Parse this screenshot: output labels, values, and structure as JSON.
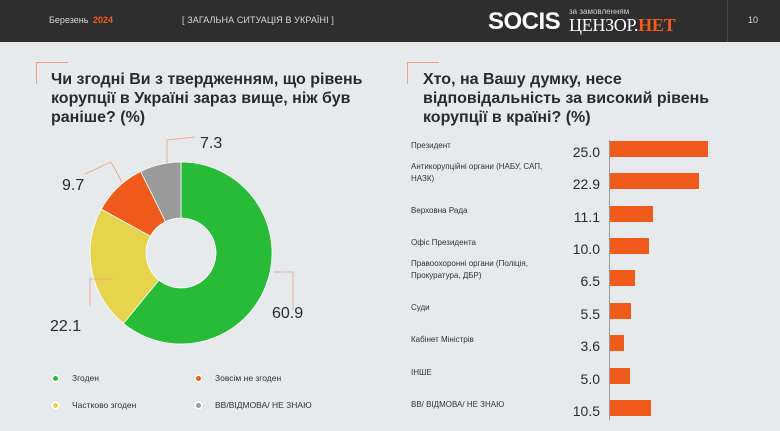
{
  "header": {
    "month": "Березень",
    "year": "2024",
    "section": "[ ЗАГАЛЬНА СИТУАЦІЯ В УКРАЇНІ ]",
    "logo_socis": "SOCIS",
    "logo_sub": "за замовленням",
    "logo_censor": "ЦЕНЗОР.",
    "logo_net": "НЕТ",
    "page_number": "10"
  },
  "left": {
    "title_lines": [
      "Чи згодні Ви з твердженням, що рівень",
      "корупції в Україні зараз вище, ніж був",
      "раніше? (%)"
    ]
  },
  "right": {
    "title_lines": [
      "Хто, на Вашу думку, несе",
      "відповідальність за високий рівень",
      "корупції в країні? (%)"
    ]
  },
  "chart_data": [
    {
      "type": "pie",
      "subtype": "donut",
      "title": "Чи згодні Ви з твердженням, що рівень корупції в Україні зараз вище, ніж був раніше? (%)",
      "categories": [
        "Згоден",
        "Частково згоден",
        "Зовсім не згоден",
        "ВВ/ВІДМОВА/ НЕ ЗНАЮ"
      ],
      "values": [
        60.9,
        22.1,
        9.7,
        7.3
      ],
      "value_labels": [
        "60.9",
        "22.1",
        "9.7",
        "7.3"
      ],
      "colors": [
        "#27bb38",
        "#e6d44c",
        "#f05a1a",
        "#9a9a9a"
      ],
      "legend_position": "bottom"
    },
    {
      "type": "bar",
      "orientation": "horizontal",
      "title": "Хто, на Вашу думку, несе відповідальність за високий рівень корупції в країні? (%)",
      "categories": [
        "Президент",
        "Антикорупційні органи (НАБУ, САП, НАЗК)",
        "Верховна Рада",
        "Офіс Президента",
        "Правоохоронні органи (Поліція, Прокуратура, ДБР)",
        "Суди",
        "Кабінет Міністрів",
        "ІНШЕ",
        "ВВ/ ВІДМОВА/ НЕ ЗНАЮ"
      ],
      "label_lines": [
        [
          "Президент"
        ],
        [
          "Антикорупційні органи (НАБУ, САП,",
          "НАЗК)"
        ],
        [
          "Верховна Рада"
        ],
        [
          "Офіс Президента"
        ],
        [
          "Правоохоронні органи (Поліція,",
          "Прокуратура, ДБР)"
        ],
        [
          "Суди"
        ],
        [
          "Кабінет Міністрів"
        ],
        [
          "ІНШЕ"
        ],
        [
          "ВВ/ ВІДМОВА/ НЕ ЗНАЮ"
        ]
      ],
      "values": [
        25.0,
        22.9,
        11.1,
        10.0,
        6.5,
        5.5,
        3.6,
        5.0,
        10.5
      ],
      "value_labels": [
        "25.0",
        "22.9",
        "11.1",
        "10.0",
        "6.5",
        "5.5",
        "3.6",
        "5.0",
        "10.5"
      ],
      "color": "#f05a1a",
      "grid": false
    }
  ],
  "legend": [
    {
      "label": "Згоден",
      "color": "#27bb38"
    },
    {
      "label": "Зовсім не згоден",
      "color": "#f05a1a"
    },
    {
      "label": "Частково згоден",
      "color": "#e6d44c"
    },
    {
      "label": "ВВ/ВІДМОВА/ НЕ ЗНАЮ",
      "color": "#9a9a9a"
    }
  ]
}
